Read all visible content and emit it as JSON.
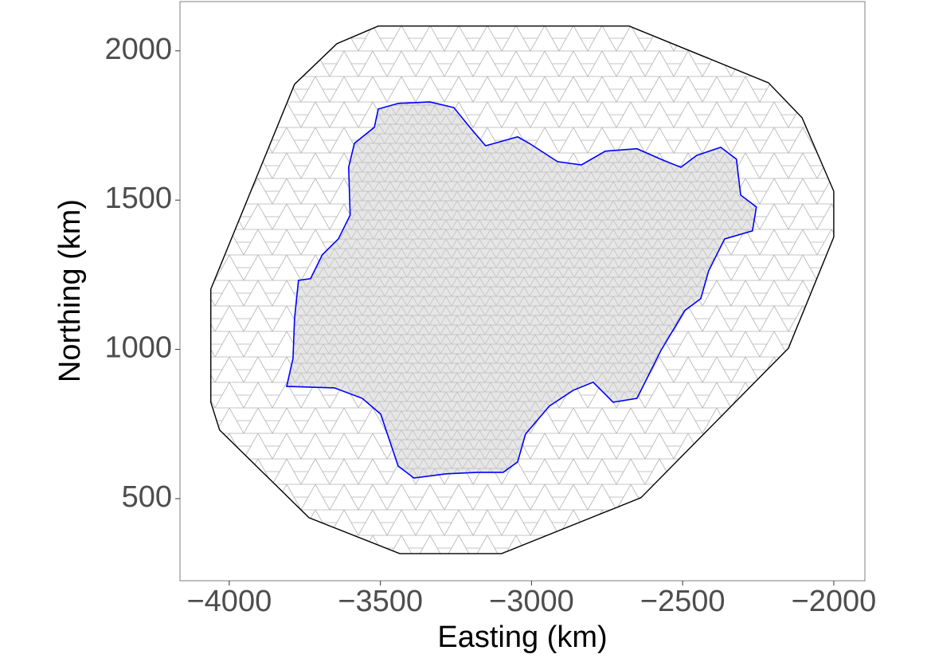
{
  "chart_data": {
    "type": "line",
    "x_label": "Easting (km)",
    "y_label": "Northing (km)",
    "xlim": [
      -4163,
      -1897
    ],
    "ylim": [
      225,
      2165
    ],
    "xticks": [
      {
        "value": -4000,
        "label": "−4000"
      },
      {
        "value": -3500,
        "label": "−3500"
      },
      {
        "value": -3000,
        "label": "−3000"
      },
      {
        "value": -2500,
        "label": "−2500"
      },
      {
        "value": -2000,
        "label": "−2000"
      }
    ],
    "yticks": [
      500,
      1000,
      1500,
      2000
    ],
    "grid": false,
    "series": [
      {
        "color": "#000000",
        "x": [
          -3507,
          -2677,
          -2216,
          -2105,
          -2000,
          -2000,
          -2150,
          -2638,
          -3099,
          -3436,
          -3736,
          -4032,
          -4061,
          -4061,
          -3784,
          -3644
        ],
        "values": [
          2083,
          2083,
          1893,
          1776,
          1530,
          1376,
          1004,
          503,
          316,
          316,
          436,
          730,
          823,
          1202,
          1888,
          2024
        ]
      },
      {
        "color": "#0000ff",
        "x": [
          -3810,
          -3652,
          -3560,
          -3499,
          -3468,
          -3441,
          -3389,
          -3283,
          -3178,
          -3094,
          -3046,
          -3020,
          -2941,
          -2862,
          -2796,
          -2730,
          -2651,
          -2572,
          -2493,
          -2440,
          -2414,
          -2361,
          -2269,
          -2256,
          -2308,
          -2322,
          -2374,
          -2453,
          -2506,
          -2572,
          -2651,
          -2756,
          -2835,
          -2914,
          -3007,
          -3046,
          -3152,
          -3204,
          -3257,
          -3336,
          -3441,
          -3507,
          -3520,
          -3586,
          -3605,
          -3600,
          -3639,
          -3692,
          -3731,
          -3771,
          -3784,
          -3789
        ],
        "values": [
          876,
          871,
          836,
          783,
          690,
          609,
          569,
          583,
          588,
          588,
          623,
          716,
          810,
          863,
          890,
          823,
          836,
          996,
          1130,
          1170,
          1263,
          1370,
          1397,
          1477,
          1517,
          1637,
          1677,
          1650,
          1610,
          1637,
          1672,
          1664,
          1618,
          1629,
          1690,
          1712,
          1682,
          1744,
          1810,
          1829,
          1824,
          1805,
          1744,
          1690,
          1610,
          1450,
          1370,
          1317,
          1237,
          1231,
          1103,
          970
        ]
      }
    ]
  }
}
